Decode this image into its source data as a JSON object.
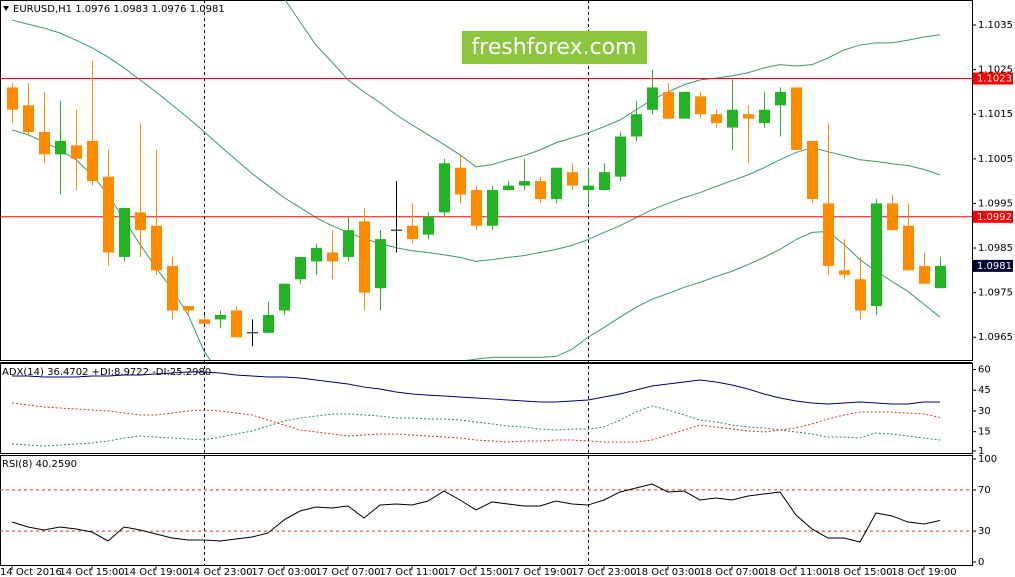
{
  "chart_data": [
    {
      "type": "candlestick",
      "title": "EURUSD,H1  1.0976 1.0983 1.0976 1.0981",
      "watermark": "freshforex.com",
      "categories": [
        "14 Oct 2016",
        null,
        null,
        null,
        null,
        "14 Oct 15:00",
        null,
        null,
        null,
        "14 Oct 19:00",
        null,
        null,
        null,
        "14 Oct 23:00",
        null,
        null,
        null,
        "17 Oct 03:00",
        null,
        null,
        null,
        "17 Oct 07:00",
        null,
        null,
        null,
        "17 Oct 11:00",
        null,
        null,
        null,
        "17 Oct 15:00",
        null,
        null,
        null,
        "17 Oct 19:00",
        null,
        null,
        null,
        "17 Oct 23:00",
        null,
        null,
        null,
        "18 Oct 03:00",
        null,
        null,
        null,
        "18 Oct 07:00",
        null,
        null,
        null,
        "18 Oct 11:00",
        null,
        null,
        null,
        "18 Oct 15:00",
        null,
        null,
        null,
        "18 Oct 19:00",
        null
      ],
      "open": [
        1.1021,
        1.1017,
        1.1011,
        1.1006,
        1.1008,
        1.1009,
        1.1001,
        1.0983,
        1.0993,
        1.099,
        1.0981,
        1.0972,
        1.0969,
        1.0969,
        1.0971,
        1.0966,
        1.0966,
        1.0971,
        1.0978,
        1.0982,
        1.0984,
        1.0983,
        1.0991,
        1.0976,
        1.0989,
        1.099,
        1.0988,
        1.0993,
        1.1003,
        1.0998,
        1.099,
        1.0998,
        1.0999,
        1.1,
        1.0996,
        1.1002,
        1.0998,
        1.0998,
        1.1001,
        1.101,
        1.1016,
        1.102,
        1.1014,
        1.1019,
        1.1015,
        1.1012,
        1.1015,
        1.1013,
        1.1017,
        1.1021,
        1.1009,
        1.0995,
        1.098,
        1.0978,
        1.0972,
        1.0995,
        1.099,
        1.0981,
        1.0976
      ],
      "high": [
        1.1022,
        1.1022,
        1.102,
        1.1018,
        1.1016,
        1.1027,
        1.1007,
        1.0994,
        1.1013,
        1.1007,
        1.0983,
        1.0972,
        1.097,
        1.0971,
        1.0972,
        1.0969,
        1.0973,
        1.0977,
        1.0983,
        1.0986,
        1.0989,
        1.0992,
        1.0994,
        1.0989,
        1.1,
        1.0995,
        1.0993,
        1.1005,
        1.1006,
        1.0999,
        1.0999,
        1.1,
        1.1005,
        1.1001,
        1.1003,
        1.1004,
        1.1003,
        1.1004,
        1.1011,
        1.1018,
        1.1025,
        1.1022,
        1.102,
        1.102,
        1.1016,
        1.1023,
        1.1017,
        1.102,
        1.1021,
        1.1021,
        1.1009,
        1.1013,
        1.0987,
        1.0983,
        1.0996,
        1.0997,
        1.0995,
        1.0984,
        1.0983
      ],
      "low": [
        1.1013,
        1.101,
        1.1004,
        1.0997,
        1.0998,
        1.0999,
        1.0981,
        1.0982,
        1.0983,
        1.0979,
        1.0969,
        1.097,
        1.0968,
        1.0967,
        1.0965,
        1.0963,
        1.0966,
        1.097,
        1.0977,
        1.0979,
        1.0978,
        1.0982,
        1.0971,
        1.0971,
        1.0984,
        1.0986,
        1.0987,
        1.0992,
        1.0995,
        1.0989,
        1.0989,
        1.0998,
        1.0998,
        1.0995,
        1.0995,
        1.0998,
        1.0995,
        1.0998,
        1.1,
        1.1009,
        1.1015,
        1.1014,
        1.1014,
        1.1014,
        1.1012,
        1.1007,
        1.1004,
        1.1012,
        1.101,
        1.1007,
        1.0995,
        1.0979,
        1.0978,
        1.0969,
        1.097,
        1.0989,
        1.098,
        1.0977,
        1.0976
      ],
      "close": [
        1.1016,
        1.1011,
        1.1006,
        1.1009,
        1.1005,
        1.1,
        1.0984,
        1.0994,
        1.0989,
        1.098,
        1.0971,
        1.0971,
        1.0968,
        1.097,
        1.0965,
        1.0966,
        1.097,
        1.0977,
        1.0983,
        1.0985,
        1.0982,
        1.0989,
        1.0975,
        1.0987,
        1.0989,
        1.0987,
        1.0992,
        1.1004,
        1.0997,
        1.099,
        1.0998,
        1.0999,
        1.1,
        1.0996,
        1.1003,
        1.0999,
        1.0999,
        1.1002,
        1.101,
        1.1015,
        1.1021,
        1.1014,
        1.102,
        1.1015,
        1.1013,
        1.1016,
        1.1014,
        1.1016,
        1.102,
        1.1007,
        1.0996,
        1.0981,
        1.0979,
        1.0971,
        1.0995,
        1.0989,
        1.098,
        1.0977,
        1.0981
      ],
      "up_color": "#22b422",
      "down_color": "#ff8c00",
      "doji_color": "#000000",
      "overlays": [
        {
          "color": "#3c9a64",
          "values": [
            1.10607,
            1.10601,
            1.10598,
            1.10594,
            1.10585,
            1.10583,
            1.10587,
            1.10594,
            1.10596,
            1.10594,
            1.10585,
            1.10583,
            1.10585,
            1.1058,
            1.10563,
            1.10529,
            1.10473,
            1.1041,
            1.10357,
            1.10305,
            1.10267,
            1.10227,
            1.102,
            1.10176,
            1.10149,
            1.10126,
            1.10104,
            1.10082,
            1.10059,
            1.10032,
            1.10037,
            1.10048,
            1.10057,
            1.1007,
            1.10086,
            1.10097,
            1.10108,
            1.10122,
            1.10137,
            1.1016,
            1.10182,
            1.102,
            1.10216,
            1.10227,
            1.10231,
            1.10236,
            1.10243,
            1.10254,
            1.10261,
            1.10258,
            1.10261,
            1.10276,
            1.10294,
            1.10305,
            1.1031,
            1.1031,
            1.10316,
            1.10323,
            1.10328
          ]
        },
        {
          "color": "#3c9a64",
          "values": [
            1.10361,
            1.10352,
            1.10343,
            1.10332,
            1.10316,
            1.10299,
            1.10278,
            1.10254,
            1.10227,
            1.102,
            1.10171,
            1.10142,
            1.10111,
            1.10079,
            1.10048,
            1.10017,
            1.0999,
            1.09963,
            1.09941,
            1.09918,
            1.099,
            1.09885,
            1.09871,
            1.0986,
            1.09851,
            1.09844,
            1.0984,
            1.09835,
            1.09829,
            1.0982,
            1.09824,
            1.09829,
            1.09833,
            1.0984,
            1.09847,
            1.09856,
            1.09869,
            1.09885,
            1.099,
            1.09918,
            1.09936,
            1.0995,
            1.09963,
            1.09974,
            1.09988,
            1.10001,
            1.10014,
            1.1003,
            1.10048,
            1.10064,
            1.10075,
            1.10066,
            1.10057,
            1.10048,
            1.10044,
            1.10039,
            1.10035,
            1.10026,
            1.10014
          ]
        },
        {
          "color": "#3c9a64",
          "values": [
            1.10115,
            1.10104,
            1.10088,
            1.1007,
            1.10048,
            1.10014,
            1.0997,
            1.09914,
            1.09858,
            1.09806,
            1.09757,
            1.09701,
            1.09619,
            1.09567,
            1.09522,
            1.09489,
            1.09466,
            1.09455,
            1.09455,
            1.09466,
            1.09489,
            1.09511,
            1.09534,
            1.09549,
            1.0956,
            1.09569,
            1.09578,
            1.09587,
            1.09596,
            1.09601,
            1.09605,
            1.09605,
            1.09605,
            1.09605,
            1.09607,
            1.09623,
            1.0965,
            1.09672,
            1.09695,
            1.09717,
            1.09735,
            1.09748,
            1.09762,
            1.09773,
            1.09786,
            1.09798,
            1.09813,
            1.09829,
            1.09847,
            1.09869,
            1.09885,
            1.09887,
            1.09858,
            1.09824,
            1.09798,
            1.09775,
            1.09753,
            1.09724,
            1.09695
          ]
        }
      ],
      "hlines": [
        {
          "value": 1.1023,
          "color": "#ff0000"
        },
        {
          "value": 1.0992,
          "color": "#ff0000"
        }
      ],
      "last_price_color": "#000033",
      "ylim": [
        1.09599,
        1.10406
      ],
      "yticks": [
        1.1035,
        1.1025,
        1.1015,
        1.1005,
        1.0995,
        1.0985,
        1.0975,
        1.0965
      ]
    },
    {
      "type": "line",
      "title": "ADX(14) 36.4702 +DI:8.9722 -DI:25.2980",
      "series": [
        {
          "color": "#000080",
          "style": "solid",
          "values": [
            55.3,
            55.3,
            54.6,
            54.6,
            54.6,
            55.3,
            55.3,
            56.0,
            56.0,
            56.8,
            57.5,
            58.2,
            58.2,
            57.5,
            56.0,
            55.3,
            54.6,
            54.6,
            53.9,
            52.4,
            51.0,
            49.5,
            47.3,
            45.9,
            43.7,
            42.3,
            41.5,
            40.8,
            40.1,
            39.4,
            38.7,
            37.9,
            37.2,
            36.5,
            36.5,
            37.2,
            37.9,
            40.1,
            42.3,
            45.2,
            48.1,
            49.5,
            51.0,
            52.4,
            51.0,
            48.8,
            45.9,
            42.3,
            39.4,
            37.2,
            35.8,
            35.0,
            35.8,
            36.5,
            35.8,
            35.0,
            35.0,
            36.5,
            36.4702
          ]
        },
        {
          "color": "#2e8b57",
          "style": "dotted",
          "values": [
            6.1,
            5.3,
            4.6,
            5.3,
            6.1,
            6.8,
            8.2,
            10.4,
            11.9,
            11.1,
            10.4,
            9.7,
            9.0,
            11.1,
            13.3,
            15.5,
            19.1,
            22.7,
            24.9,
            26.3,
            27.8,
            27.8,
            27.1,
            26.3,
            24.9,
            24.9,
            24.2,
            24.2,
            23.4,
            22.0,
            20.6,
            19.1,
            18.4,
            16.9,
            16.2,
            16.9,
            16.9,
            18.4,
            23.4,
            29.2,
            33.6,
            30.7,
            27.1,
            23.4,
            22.0,
            19.8,
            18.4,
            17.7,
            16.2,
            14.8,
            13.3,
            11.1,
            11.1,
            10.4,
            14.0,
            13.3,
            11.9,
            10.4,
            8.9722
          ]
        },
        {
          "color": "#e03030",
          "style": "dotted",
          "values": [
            35.8,
            34.3,
            32.9,
            32.1,
            31.4,
            30.7,
            30.0,
            28.5,
            27.1,
            27.1,
            28.5,
            30.0,
            30.7,
            30.0,
            28.5,
            27.1,
            23.4,
            19.8,
            16.2,
            14.8,
            13.3,
            11.9,
            12.6,
            13.3,
            13.3,
            12.6,
            11.9,
            11.1,
            10.4,
            9.0,
            8.2,
            7.5,
            8.2,
            8.2,
            9.0,
            9.0,
            8.2,
            7.5,
            7.5,
            7.5,
            9.0,
            12.6,
            16.2,
            19.8,
            18.4,
            16.9,
            15.5,
            14.8,
            16.2,
            17.7,
            20.6,
            24.2,
            27.1,
            29.2,
            29.2,
            29.2,
            28.5,
            27.8,
            25.298
          ]
        }
      ],
      "ylim": [
        1,
        64
      ],
      "yticks": [
        60,
        45,
        30,
        15,
        1
      ]
    },
    {
      "type": "line",
      "title": "RSI(8) 40.2590",
      "series": [
        {
          "color": "#000000",
          "style": "solid",
          "values": [
            38.8,
            34.0,
            31.1,
            34.0,
            32.0,
            29.1,
            20.4,
            34.0,
            31.1,
            27.2,
            23.3,
            21.4,
            21.4,
            20.4,
            22.3,
            24.3,
            28.2,
            40.8,
            49.5,
            53.4,
            52.4,
            54.4,
            42.7,
            55.3,
            56.3,
            55.3,
            59.2,
            68.9,
            60.2,
            50.5,
            58.3,
            56.3,
            54.4,
            54.4,
            59.2,
            56.3,
            55.3,
            60.2,
            68.0,
            71.8,
            75.7,
            68.0,
            68.9,
            60.2,
            62.1,
            60.2,
            64.1,
            66.0,
            68.0,
            45.6,
            32.0,
            23.3,
            23.3,
            19.4,
            47.6,
            44.7,
            38.8,
            36.9,
            40.259
          ]
        }
      ],
      "levels": [
        70,
        30
      ],
      "level_color": "#e03030",
      "ylim": [
        0,
        100
      ],
      "yticks": [
        100,
        70,
        30,
        0
      ]
    }
  ]
}
